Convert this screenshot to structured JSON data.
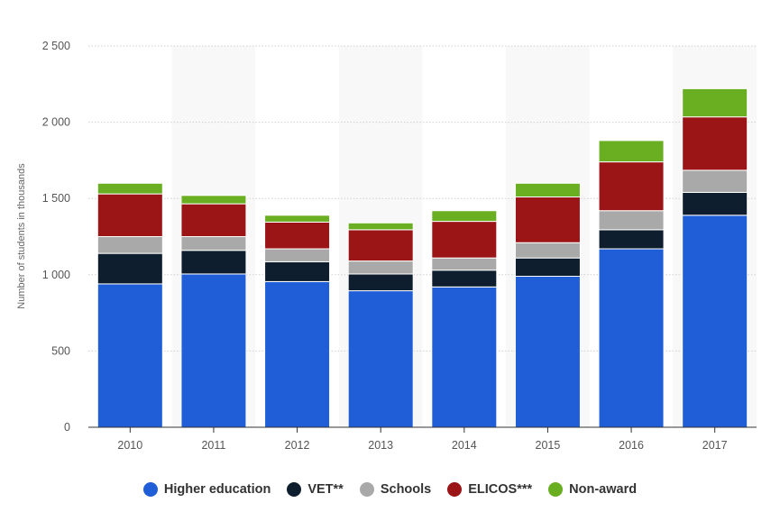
{
  "chart_data": {
    "type": "bar",
    "stacked": true,
    "title": "",
    "xlabel": "",
    "ylabel": "Number of students in thousands",
    "ylim": [
      0,
      2500
    ],
    "yticks": [
      0,
      500,
      1000,
      1500,
      2000,
      2500
    ],
    "ytick_labels": [
      "0",
      "500",
      "1 000",
      "1 500",
      "2 000",
      "2 500"
    ],
    "categories": [
      "2010",
      "2011",
      "2012",
      "2013",
      "2014",
      "2015",
      "2016",
      "2017"
    ],
    "series": [
      {
        "name": "Higher education",
        "color": "#1f5ed6",
        "values": [
          940,
          1005,
          955,
          895,
          920,
          990,
          1170,
          1390
        ]
      },
      {
        "name": "VET**",
        "color": "#0e1e2e",
        "values": [
          200,
          155,
          130,
          110,
          110,
          120,
          125,
          150
        ]
      },
      {
        "name": "Schools",
        "color": "#a9a9a9",
        "values": [
          110,
          90,
          85,
          85,
          80,
          100,
          125,
          145
        ]
      },
      {
        "name": "ELICOS***",
        "color": "#9b1517",
        "values": [
          280,
          215,
          175,
          205,
          240,
          300,
          320,
          350
        ]
      },
      {
        "name": "Non-award",
        "color": "#6aaf22",
        "values": [
          70,
          55,
          45,
          45,
          70,
          90,
          140,
          185
        ]
      }
    ],
    "grid": true,
    "legend_position": "bottom"
  }
}
